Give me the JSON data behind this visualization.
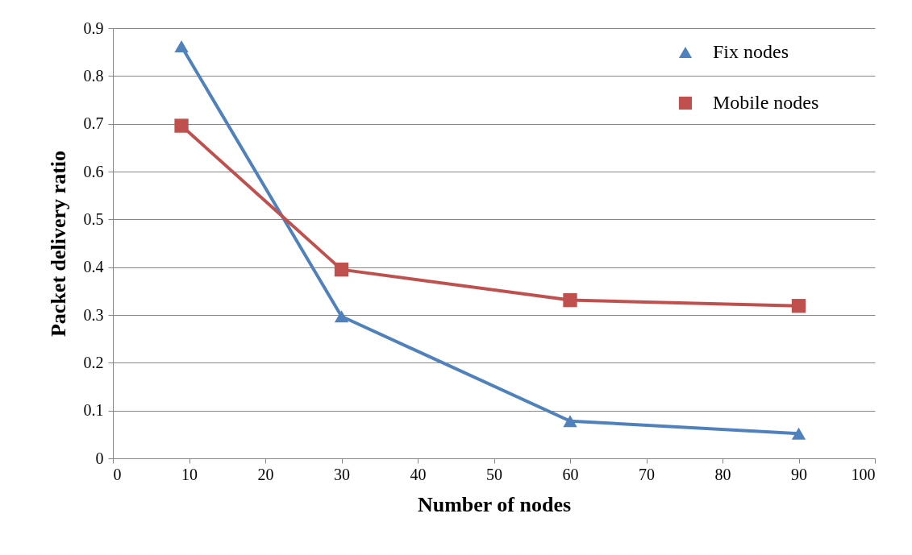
{
  "chart_data": {
    "type": "line",
    "xlabel": "Number of nodes",
    "ylabel": "Packet delivery ratio",
    "xlim": [
      0,
      100
    ],
    "xticks": [
      0,
      10,
      20,
      30,
      40,
      50,
      60,
      70,
      80,
      90,
      100
    ],
    "ylim": [
      0,
      0.9
    ],
    "yticks": [
      0,
      0.1,
      0.2,
      0.3,
      0.4,
      0.5,
      0.6,
      0.7,
      0.8,
      0.9
    ],
    "grid": "y",
    "legend": "top right",
    "line_style": "solid",
    "series": [
      {
        "name": "Fix nodes",
        "color": "#4f81bd",
        "marker": "triangle",
        "x": [
          9,
          30,
          60,
          90
        ],
        "values": [
          0.862,
          0.297,
          0.078,
          0.052
        ]
      },
      {
        "name": "Mobile nodes",
        "color": "#c0504d",
        "marker": "square",
        "x": [
          9,
          30,
          60,
          90
        ],
        "values": [
          0.696,
          0.395,
          0.331,
          0.319
        ]
      }
    ]
  }
}
